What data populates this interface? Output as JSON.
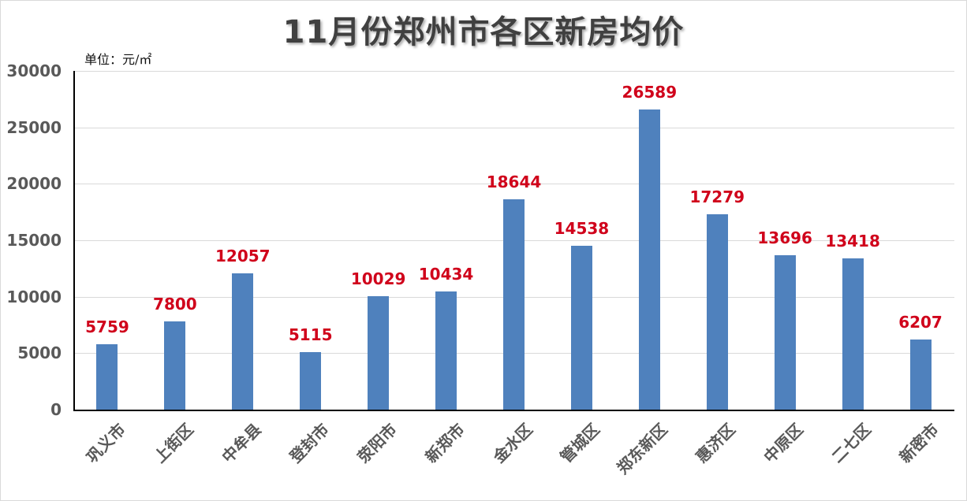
{
  "title": "11月份郑州市各区新房均价",
  "unit_label": "单位：元/㎡",
  "colors": {
    "bar": "#4f81bd",
    "value_label": "#d0021b",
    "axis_text": "#595959",
    "grid": "#d9d9d9"
  },
  "y_ticks": [
    "0",
    "5000",
    "10000",
    "15000",
    "20000",
    "25000",
    "30000"
  ],
  "chart_data": {
    "type": "bar",
    "title": "11月份郑州市各区新房均价",
    "subtitle": "单位：元/㎡",
    "xlabel": "",
    "ylabel": "元/㎡",
    "ylim": [
      0,
      30000
    ],
    "y_ticks": [
      0,
      5000,
      10000,
      15000,
      20000,
      25000,
      30000
    ],
    "grid": true,
    "legend": "none",
    "categories": [
      "巩义市",
      "上街区",
      "中牟县",
      "登封市",
      "荥阳市",
      "新郑市",
      "金水区",
      "管城区",
      "郑东新区",
      "惠济区",
      "中原区",
      "二七区",
      "新密市"
    ],
    "values": [
      5759,
      7800,
      12057,
      5115,
      10029,
      10434,
      18644,
      14538,
      26589,
      17279,
      13696,
      13418,
      6207
    ],
    "data_labels": [
      "5759",
      "7800",
      "12057",
      "5115",
      "10029",
      "10434",
      "18644",
      "14538",
      "26589",
      "17279",
      "13696",
      "13418",
      "6207"
    ]
  }
}
